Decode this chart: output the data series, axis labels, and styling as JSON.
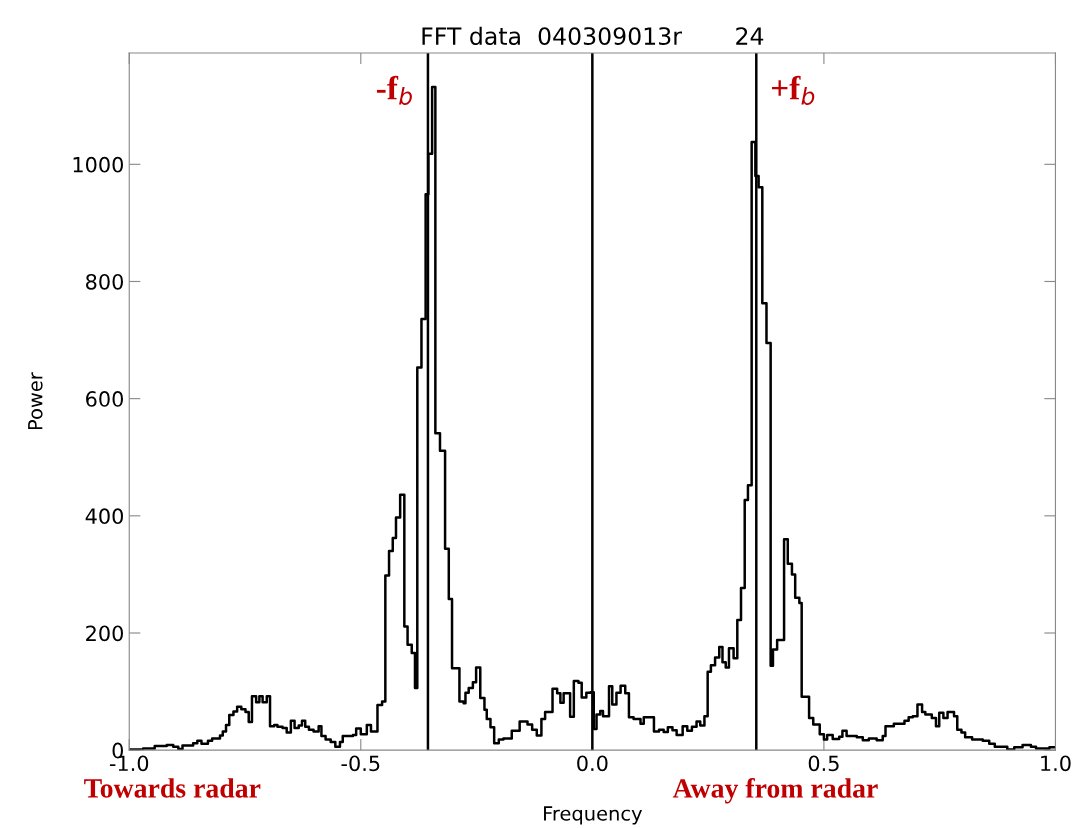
{
  "chart_data": {
    "type": "step",
    "title": "FFT data  040309013r       24",
    "xlabel": "Frequency",
    "ylabel": "Power",
    "xlim": [
      -1.0,
      1.0
    ],
    "ylim": [
      0,
      1190
    ],
    "xticks": [
      {
        "value": -1.0,
        "label": "-1.0"
      },
      {
        "value": -0.5,
        "label": "-0.5"
      },
      {
        "value": 0.0,
        "label": "0.0"
      },
      {
        "value": 0.5,
        "label": "0.5"
      },
      {
        "value": 1.0,
        "label": "1.0"
      }
    ],
    "yticks": [
      0,
      200,
      400,
      600,
      800,
      1000
    ],
    "grid": false,
    "legend": false,
    "marker": "none",
    "line_style": "solid",
    "series": [
      {
        "color": "#000000",
        "x": [
          -1.0,
          -0.97,
          -0.945,
          -0.919,
          -0.905,
          -0.894,
          -0.885,
          -0.862,
          -0.853,
          -0.844,
          -0.83,
          -0.821,
          -0.804,
          -0.798,
          -0.791,
          -0.784,
          -0.775,
          -0.767,
          -0.758,
          -0.749,
          -0.742,
          -0.735,
          -0.726,
          -0.719,
          -0.712,
          -0.703,
          -0.696,
          -0.687,
          -0.68,
          -0.669,
          -0.66,
          -0.651,
          -0.643,
          -0.634,
          -0.627,
          -0.62,
          -0.612,
          -0.602,
          -0.591,
          -0.585,
          -0.576,
          -0.565,
          -0.555,
          -0.545,
          -0.539,
          -0.517,
          -0.51,
          -0.5,
          -0.487,
          -0.478,
          -0.464,
          -0.454,
          -0.447,
          -0.439,
          -0.431,
          -0.424,
          -0.415,
          -0.406,
          -0.399,
          -0.39,
          -0.383,
          -0.378,
          -0.369,
          -0.36,
          -0.354,
          -0.346,
          -0.339,
          -0.329,
          -0.318,
          -0.31,
          -0.303,
          -0.287,
          -0.278,
          -0.274,
          -0.267,
          -0.258,
          -0.251,
          -0.242,
          -0.233,
          -0.228,
          -0.22,
          -0.212,
          -0.202,
          -0.192,
          -0.174,
          -0.157,
          -0.14,
          -0.13,
          -0.12,
          -0.11,
          -0.102,
          -0.086,
          -0.076,
          -0.069,
          -0.062,
          -0.048,
          -0.04,
          -0.03,
          -0.023,
          -0.013,
          -0.004,
          0.003,
          0.009,
          0.017,
          0.023,
          0.036,
          0.043,
          0.052,
          0.061,
          0.071,
          0.079,
          0.089,
          0.104,
          0.111,
          0.133,
          0.144,
          0.154,
          0.163,
          0.173,
          0.182,
          0.195,
          0.205,
          0.215,
          0.225,
          0.233,
          0.242,
          0.249,
          0.256,
          0.265,
          0.274,
          0.281,
          0.288,
          0.295,
          0.305,
          0.313,
          0.321,
          0.329,
          0.336,
          0.344,
          0.352,
          0.359,
          0.367,
          0.376,
          0.385,
          0.39,
          0.399,
          0.414,
          0.422,
          0.431,
          0.438,
          0.447,
          0.452,
          0.468,
          0.477,
          0.491,
          0.5,
          0.507,
          0.519,
          0.533,
          0.54,
          0.549,
          0.571,
          0.584,
          0.597,
          0.614,
          0.627,
          0.633,
          0.651,
          0.674,
          0.683,
          0.692,
          0.702,
          0.712,
          0.719,
          0.733,
          0.742,
          0.749,
          0.758,
          0.767,
          0.781,
          0.788,
          0.797,
          0.805,
          0.82,
          0.843,
          0.857,
          0.869,
          0.896,
          0.911,
          0.929,
          0.947,
          0.958,
          0.987,
          1.0
        ],
        "values": [
          1,
          3,
          7,
          9,
          6,
          2,
          8,
          12,
          16,
          11,
          16,
          20,
          25,
          32,
          43,
          60,
          66,
          74,
          70,
          65,
          48,
          92,
          82,
          92,
          82,
          92,
          41,
          43,
          40,
          38,
          30,
          50,
          38,
          42,
          50,
          40,
          35,
          32,
          41,
          24,
          18,
          14,
          6,
          14,
          24,
          26,
          37,
          27,
          43,
          32,
          77,
          83,
          298,
          340,
          362,
          397,
          436,
          211,
          180,
          166,
          106,
          653,
          736,
          949,
          1018,
          1132,
          541,
          511,
          344,
          258,
          140,
          83,
          80,
          98,
          106,
          116,
          141,
          89,
          69,
          53,
          39,
          12,
          18,
          20,
          33,
          49,
          44,
          35,
          25,
          53,
          65,
          105,
          97,
          81,
          97,
          57,
          118,
          115,
          90,
          98,
          99,
          36,
          61,
          67,
          58,
          109,
          78,
          98,
          110,
          97,
          56,
          53,
          45,
          56,
          32,
          35,
          31,
          39,
          34,
          26,
          41,
          33,
          40,
          49,
          42,
          58,
          134,
          145,
          158,
          176,
          150,
          141,
          174,
          157,
          222,
          277,
          427,
          452,
          1038,
          980,
          961,
          763,
          695,
          144,
          172,
          188,
          360,
          318,
          300,
          260,
          251,
          91,
          55,
          44,
          27,
          18,
          26,
          19,
          23,
          33,
          24,
          22,
          17,
          20,
          17,
          24,
          41,
          45,
          50,
          56,
          58,
          78,
          65,
          61,
          55,
          41,
          64,
          55,
          65,
          58,
          35,
          30,
          22,
          18,
          16,
          11,
          6,
          1,
          5,
          9,
          6,
          3,
          5,
          5
        ]
      }
    ],
    "ref_lines": [
      {
        "axis": "x",
        "value": -0.355,
        "label": "-f$_{b}$",
        "color": "#000000"
      },
      {
        "axis": "x",
        "value": 0.0,
        "color": "#000000"
      },
      {
        "axis": "x",
        "value": 0.354,
        "label": "+f$_{b}$",
        "color": "#000000"
      }
    ],
    "annotations": [
      "Towards radar",
      "Away from radar"
    ]
  }
}
